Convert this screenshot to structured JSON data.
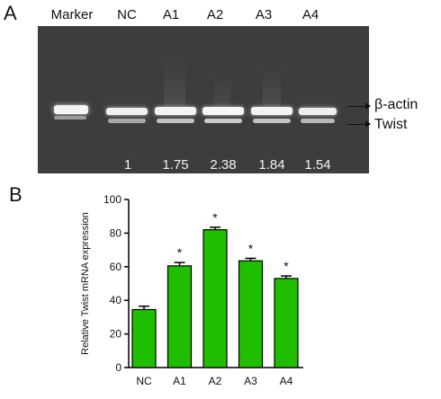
{
  "panels": {
    "a_label": "A",
    "b_label": "B"
  },
  "gel": {
    "lanes": [
      "Marker",
      "NC",
      "A1",
      "A2",
      "A3",
      "A4"
    ],
    "ratios": [
      "1",
      "1.75",
      "2.38",
      "1.84",
      "1.54"
    ],
    "band_labels": {
      "top": "β-actin",
      "bottom": "Twist"
    },
    "background_color": "#3d3d3d"
  },
  "chart_data": {
    "type": "bar",
    "categories": [
      "NC",
      "A1",
      "A2",
      "A3",
      "A4"
    ],
    "values": [
      34.5,
      60.5,
      82,
      63.5,
      53
    ],
    "errors": [
      2,
      2,
      1.5,
      1.5,
      1.5
    ],
    "significance": [
      "",
      "*",
      "*",
      "*",
      "*"
    ],
    "ylabel": "Relative Twist mRNA expression",
    "xlabel": "",
    "ylim": [
      0,
      100
    ],
    "yticks": [
      0,
      20,
      40,
      60,
      80,
      100
    ],
    "bar_color": "#1fbf00",
    "edge_color": "#000000"
  }
}
